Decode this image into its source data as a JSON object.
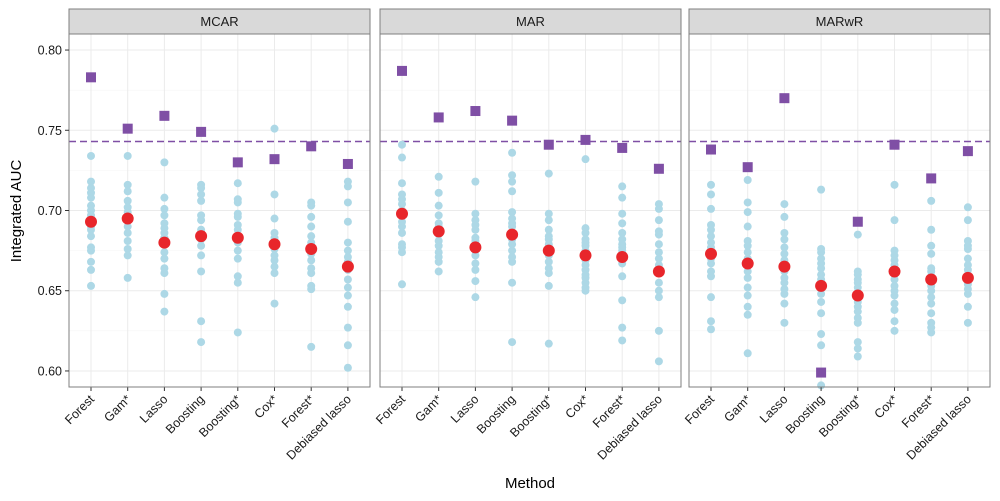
{
  "chart_data": {
    "type": "scatter",
    "ylabel": "Integrated AUC",
    "xlabel": "Method",
    "ylim": [
      0.59,
      0.81
    ],
    "yticks": [
      "0.60",
      "0.65",
      "0.70",
      "0.75",
      "0.80"
    ],
    "reference_line": 0.743,
    "categories": [
      "Forest",
      "Gam*",
      "Lasso",
      "Boosting",
      "Boosting*",
      "Cox*",
      "Forest*",
      "Debiased lasso"
    ],
    "colors": {
      "replicate": "#add8e6",
      "mean": "#e8262b",
      "square": "#7f4fa5",
      "reference": "#7f4fa5",
      "strip_bg": "#d9d9d9",
      "panel_border": "#7f7f7f",
      "grid": "#ebebeb"
    },
    "panels": [
      {
        "title": "MCAR",
        "square": [
          0.783,
          0.751,
          0.759,
          0.749,
          0.73,
          0.732,
          0.74,
          0.729
        ],
        "mean": [
          0.693,
          0.695,
          0.68,
          0.684,
          0.683,
          0.679,
          0.676,
          0.665
        ],
        "points": [
          [
            0.734,
            0.718,
            0.714,
            0.711,
            0.708,
            0.703,
            0.7,
            0.697,
            0.693,
            0.69,
            0.688,
            0.684,
            0.677,
            0.675,
            0.668,
            0.663,
            0.653
          ],
          [
            0.734,
            0.716,
            0.712,
            0.706,
            0.702,
            0.699,
            0.694,
            0.69,
            0.686,
            0.681,
            0.676,
            0.672,
            0.658
          ],
          [
            0.73,
            0.708,
            0.701,
            0.697,
            0.692,
            0.689,
            0.686,
            0.683,
            0.679,
            0.674,
            0.67,
            0.664,
            0.661,
            0.648,
            0.637
          ],
          [
            0.716,
            0.714,
            0.71,
            0.706,
            0.697,
            0.694,
            0.688,
            0.685,
            0.682,
            0.678,
            0.672,
            0.662,
            0.631,
            0.618
          ],
          [
            0.717,
            0.707,
            0.705,
            0.698,
            0.696,
            0.691,
            0.688,
            0.683,
            0.68,
            0.675,
            0.67,
            0.659,
            0.655,
            0.624
          ],
          [
            0.751,
            0.71,
            0.695,
            0.686,
            0.683,
            0.679,
            0.676,
            0.672,
            0.669,
            0.665,
            0.661,
            0.642
          ],
          [
            0.705,
            0.703,
            0.696,
            0.69,
            0.684,
            0.68,
            0.676,
            0.673,
            0.669,
            0.664,
            0.661,
            0.653,
            0.651,
            0.615
          ],
          [
            0.718,
            0.715,
            0.705,
            0.693,
            0.68,
            0.675,
            0.671,
            0.668,
            0.663,
            0.657,
            0.652,
            0.647,
            0.64,
            0.627,
            0.616,
            0.602
          ]
        ]
      },
      {
        "title": "MAR",
        "square": [
          0.787,
          0.758,
          0.762,
          0.756,
          0.741,
          0.744,
          0.739,
          0.726
        ],
        "mean": [
          0.698,
          0.687,
          0.677,
          0.685,
          0.675,
          0.672,
          0.671,
          0.662
        ],
        "points": [
          [
            0.741,
            0.733,
            0.717,
            0.71,
            0.707,
            0.704,
            0.7,
            0.697,
            0.693,
            0.69,
            0.686,
            0.679,
            0.677,
            0.674,
            0.654
          ],
          [
            0.721,
            0.711,
            0.703,
            0.697,
            0.692,
            0.69,
            0.685,
            0.681,
            0.678,
            0.674,
            0.671,
            0.668,
            0.662
          ],
          [
            0.718,
            0.698,
            0.694,
            0.691,
            0.688,
            0.683,
            0.681,
            0.679,
            0.675,
            0.672,
            0.667,
            0.663,
            0.656,
            0.646
          ],
          [
            0.736,
            0.722,
            0.718,
            0.712,
            0.699,
            0.695,
            0.692,
            0.69,
            0.686,
            0.682,
            0.679,
            0.675,
            0.671,
            0.668,
            0.655,
            0.618
          ],
          [
            0.723,
            0.698,
            0.694,
            0.688,
            0.684,
            0.682,
            0.679,
            0.676,
            0.672,
            0.668,
            0.664,
            0.661,
            0.653,
            0.617
          ],
          [
            0.732,
            0.689,
            0.686,
            0.682,
            0.68,
            0.678,
            0.675,
            0.672,
            0.669,
            0.666,
            0.663,
            0.66,
            0.658,
            0.655,
            0.652,
            0.65
          ],
          [
            0.715,
            0.708,
            0.698,
            0.692,
            0.686,
            0.682,
            0.679,
            0.677,
            0.675,
            0.673,
            0.67,
            0.667,
            0.659,
            0.644,
            0.627,
            0.619
          ],
          [
            0.704,
            0.701,
            0.694,
            0.687,
            0.685,
            0.679,
            0.674,
            0.67,
            0.666,
            0.661,
            0.655,
            0.65,
            0.646,
            0.625,
            0.606
          ]
        ]
      },
      {
        "title": "MARwR",
        "square": [
          0.738,
          0.727,
          0.77,
          0.599,
          0.693,
          0.741,
          0.72,
          0.737
        ],
        "mean": [
          0.673,
          0.667,
          0.665,
          0.653,
          0.647,
          0.662,
          0.657,
          0.658
        ],
        "points": [
          [
            0.716,
            0.71,
            0.701,
            0.691,
            0.688,
            0.684,
            0.68,
            0.677,
            0.673,
            0.67,
            0.667,
            0.662,
            0.659,
            0.646,
            0.631,
            0.626
          ],
          [
            0.719,
            0.705,
            0.699,
            0.69,
            0.681,
            0.678,
            0.674,
            0.67,
            0.666,
            0.662,
            0.658,
            0.652,
            0.647,
            0.64,
            0.635,
            0.611
          ],
          [
            0.704,
            0.696,
            0.686,
            0.682,
            0.677,
            0.673,
            0.669,
            0.666,
            0.662,
            0.658,
            0.655,
            0.651,
            0.648,
            0.642,
            0.63
          ],
          [
            0.713,
            0.676,
            0.674,
            0.67,
            0.667,
            0.664,
            0.66,
            0.657,
            0.654,
            0.651,
            0.648,
            0.643,
            0.636,
            0.623,
            0.616,
            0.591
          ],
          [
            0.685,
            0.662,
            0.66,
            0.657,
            0.655,
            0.652,
            0.649,
            0.646,
            0.643,
            0.64,
            0.637,
            0.633,
            0.63,
            0.618,
            0.614,
            0.609
          ],
          [
            0.716,
            0.694,
            0.675,
            0.672,
            0.669,
            0.666,
            0.663,
            0.66,
            0.657,
            0.653,
            0.65,
            0.647,
            0.642,
            0.638,
            0.631,
            0.625
          ],
          [
            0.706,
            0.688,
            0.678,
            0.673,
            0.664,
            0.662,
            0.659,
            0.656,
            0.653,
            0.65,
            0.646,
            0.642,
            0.636,
            0.63,
            0.627,
            0.624
          ],
          [
            0.702,
            0.694,
            0.681,
            0.678,
            0.676,
            0.67,
            0.666,
            0.663,
            0.66,
            0.657,
            0.654,
            0.651,
            0.648,
            0.64,
            0.63
          ]
        ]
      }
    ]
  }
}
